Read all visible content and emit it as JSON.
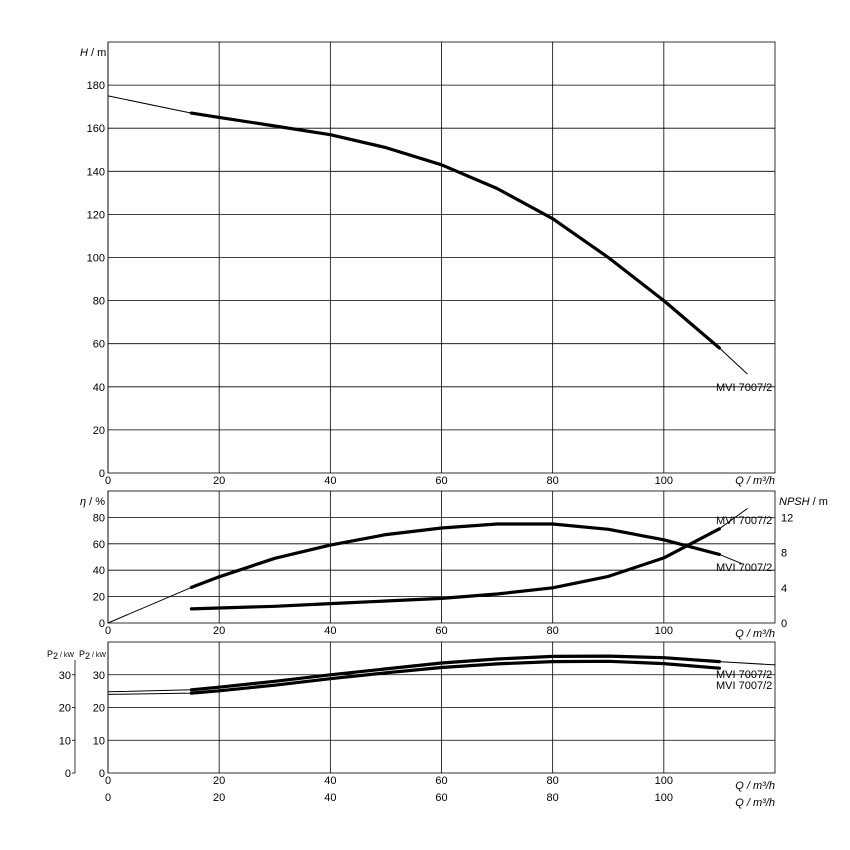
{
  "chart_data": [
    {
      "type": "line",
      "ylabel": "H / m",
      "xlabel": "Q / m³/h",
      "xlim": [
        0,
        120
      ],
      "ylim": [
        0,
        200
      ],
      "xticks": [
        0,
        20,
        40,
        60,
        80,
        100
      ],
      "yticks": [
        0,
        20,
        40,
        60,
        80,
        100,
        120,
        140,
        160,
        180
      ],
      "grid": true,
      "series": [
        {
          "name": "MVI 7007/2",
          "x": [
            0,
            15,
            20,
            30,
            40,
            50,
            60,
            70,
            80,
            90,
            100,
            110,
            115
          ],
          "y": [
            175,
            167,
            165,
            161,
            157,
            151,
            143,
            132,
            118,
            100,
            80,
            58,
            46
          ],
          "bold_range": [
            15,
            110
          ]
        }
      ]
    },
    {
      "type": "line",
      "ylabel": "η / %",
      "y2label": "NPSH / m",
      "xlabel": "Q / m³/h",
      "xlim": [
        0,
        120
      ],
      "ylim": [
        0,
        100
      ],
      "y2lim": [
        0,
        15
      ],
      "xticks": [
        0,
        20,
        40,
        60,
        80,
        100
      ],
      "yticks": [
        0,
        20,
        40,
        60,
        80
      ],
      "y2ticks": [
        0,
        4,
        8,
        12
      ],
      "grid": true,
      "series": [
        {
          "name": "MVI 7007/2",
          "axis": "left",
          "x": [
            0,
            15,
            20,
            30,
            40,
            50,
            60,
            70,
            80,
            90,
            100,
            110,
            114
          ],
          "y": [
            0,
            27,
            35,
            49,
            59,
            67,
            72,
            75,
            75,
            71,
            63,
            52,
            45
          ],
          "bold_range": [
            15,
            110
          ]
        },
        {
          "name": "MVI 7007/2",
          "axis": "right",
          "x": [
            15,
            20,
            30,
            40,
            50,
            60,
            70,
            80,
            90,
            100,
            110,
            115
          ],
          "y": [
            1.6,
            1.7,
            1.9,
            2.2,
            2.5,
            2.8,
            3.3,
            4.0,
            5.3,
            7.4,
            10.7,
            13.0
          ],
          "bold_range": [
            15,
            110
          ]
        }
      ]
    },
    {
      "type": "line",
      "ylabel": "P2 / kW",
      "y2label": "P2 / kW",
      "xlabel": "Q / m³/h",
      "xlabel2": "Q / m³/h",
      "xlim": [
        0,
        120
      ],
      "ylim": [
        0,
        40
      ],
      "xticks": [
        0,
        20,
        40,
        60,
        80,
        100
      ],
      "yticks": [
        0,
        10,
        20,
        30
      ],
      "grid": true,
      "series": [
        {
          "name": "MVI 7007/2",
          "x": [
            0,
            15,
            20,
            30,
            40,
            50,
            60,
            70,
            80,
            90,
            100,
            110,
            120
          ],
          "y": [
            24.8,
            25.4,
            26.2,
            28.0,
            30.0,
            31.8,
            33.6,
            34.8,
            35.6,
            35.7,
            35.2,
            34.0,
            33.0
          ],
          "bold_range": [
            15,
            110
          ]
        },
        {
          "name": "MVI 7007/2",
          "x": [
            0,
            15,
            20,
            30,
            40,
            50,
            60,
            70,
            80,
            90,
            100,
            110
          ],
          "y": [
            24.0,
            24.4,
            25.1,
            26.8,
            28.8,
            30.6,
            32.2,
            33.3,
            34.0,
            34.1,
            33.4,
            32.0
          ],
          "bold_range": [
            15,
            110
          ]
        }
      ]
    }
  ],
  "labels": {
    "p1_left_axis_h": "H",
    "p1_left_axis_unit": " / m",
    "p1_x_axis": "Q / m³/h",
    "p2_left_axis_eta": "η",
    "p2_left_axis_unit": " / %",
    "p2_right_axis_npsh": "NPSH",
    "p2_right_axis_unit": " / m",
    "p2_x_axis": "Q / m³/h",
    "p3_left_axis_outer_p": "P",
    "p3_left_axis_outer_sub": "2",
    "p3_left_axis_outer_unit": " / kW",
    "p3_left_axis_inner_p": "P",
    "p3_left_axis_inner_sub": "2",
    "p3_left_axis_inner_unit": " / kW",
    "p3_x_axis": "Q / m³/h",
    "p3_x_axis_bottom": "Q / m³/h",
    "curve_label_head": "MVI 7007/2",
    "curve_label_eta": "MVI 7007/2",
    "curve_label_npsh": "MVI 7007/2",
    "curve_label_p2_a": "MVI 7007/2",
    "curve_label_p2_b": "MVI 7007/2"
  }
}
